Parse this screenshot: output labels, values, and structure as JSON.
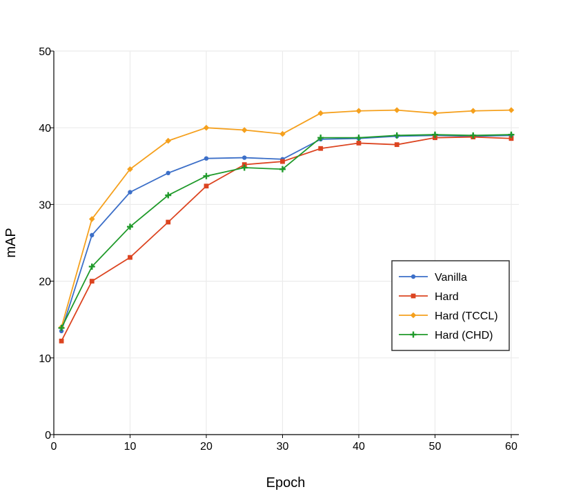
{
  "chart_data": {
    "type": "line",
    "title": "",
    "xlabel": "Epoch",
    "ylabel": "mAP",
    "xlim": [
      0,
      61
    ],
    "ylim": [
      0,
      50
    ],
    "xticks": [
      0,
      10,
      20,
      30,
      40,
      50,
      60
    ],
    "yticks": [
      0,
      10,
      20,
      30,
      40,
      50
    ],
    "grid": true,
    "legend_position": "center-right",
    "x": [
      1,
      5,
      10,
      15,
      20,
      25,
      30,
      35,
      40,
      45,
      50,
      55,
      60
    ],
    "series": [
      {
        "name": "Vanilla",
        "color": "#3c6fc8",
        "marker": "circle",
        "values": [
          13.5,
          26.0,
          31.6,
          34.1,
          36.0,
          36.1,
          35.9,
          38.5,
          38.6,
          38.9,
          39.0,
          38.9,
          39.0
        ]
      },
      {
        "name": "Hard",
        "color": "#dc4420",
        "marker": "square",
        "values": [
          12.2,
          20.0,
          23.1,
          27.7,
          32.4,
          35.2,
          35.6,
          37.3,
          38.0,
          37.8,
          38.7,
          38.8,
          38.6
        ]
      },
      {
        "name": "Hard (TCCL)",
        "color": "#f5a01d",
        "marker": "diamond",
        "values": [
          14.0,
          28.1,
          34.6,
          38.3,
          40.0,
          39.7,
          39.2,
          41.9,
          42.2,
          42.3,
          41.9,
          42.2,
          42.3
        ]
      },
      {
        "name": "Hard (CHD)",
        "color": "#1f9a2a",
        "marker": "plus",
        "values": [
          13.9,
          21.9,
          27.1,
          31.2,
          33.7,
          34.8,
          34.6,
          38.7,
          38.7,
          39.0,
          39.1,
          39.0,
          39.1
        ]
      }
    ]
  }
}
